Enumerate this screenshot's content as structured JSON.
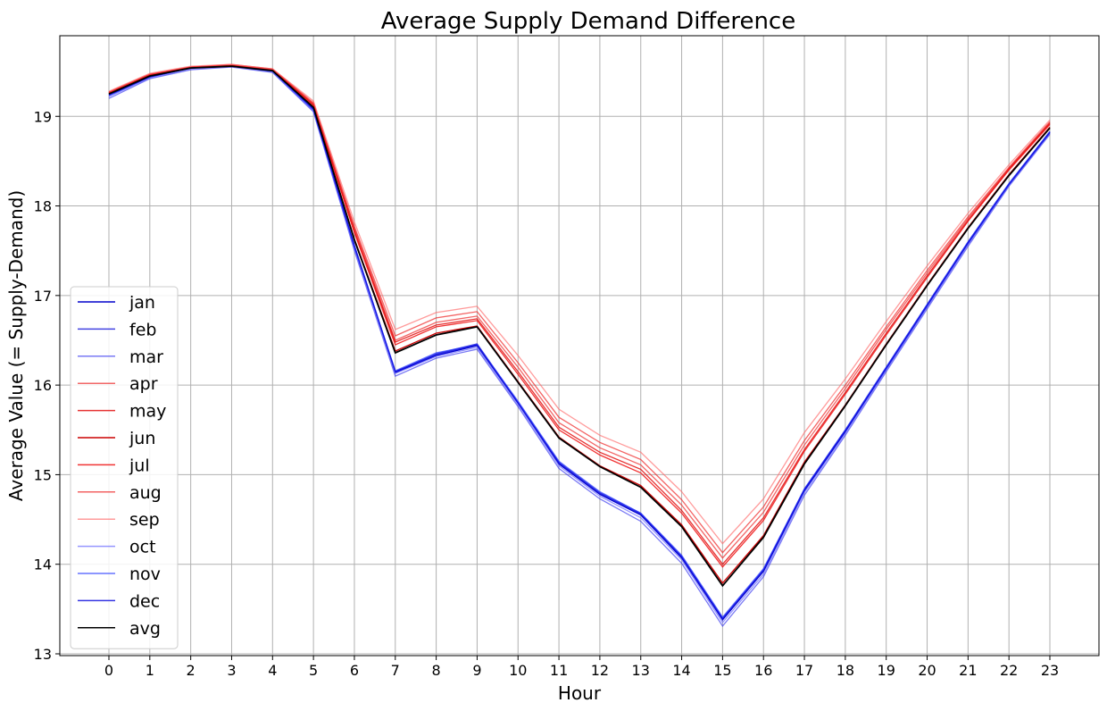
{
  "chart_data": {
    "type": "line",
    "title": "Average Supply Demand Difference",
    "xlabel": "Hour",
    "ylabel": "Average Value (= Supply-Demand)",
    "x": [
      0,
      1,
      2,
      3,
      4,
      5,
      6,
      7,
      8,
      9,
      10,
      11,
      12,
      13,
      14,
      15,
      16,
      17,
      18,
      19,
      20,
      21,
      22,
      23
    ],
    "xlim": [
      -1.2,
      24.2
    ],
    "ylim": [
      12.98,
      19.9
    ],
    "yticks": [
      13,
      14,
      15,
      16,
      17,
      18,
      19
    ],
    "grid": true,
    "legend_position": "lower-left",
    "series": [
      {
        "name": "jan",
        "color": "#0000cc",
        "opacity": 1.0,
        "values": [
          19.24,
          19.44,
          19.54,
          19.56,
          19.51,
          19.08,
          17.55,
          16.14,
          16.33,
          16.44,
          15.8,
          15.12,
          14.78,
          14.55,
          14.07,
          13.38,
          13.92,
          14.82,
          15.48,
          16.18,
          16.88,
          17.58,
          18.24,
          18.82
        ]
      },
      {
        "name": "feb",
        "color": "#2222dd",
        "opacity": 0.85,
        "values": [
          19.24,
          19.44,
          19.54,
          19.56,
          19.51,
          19.08,
          17.56,
          16.15,
          16.35,
          16.46,
          15.81,
          15.14,
          14.8,
          14.57,
          14.09,
          13.4,
          13.94,
          14.84,
          15.5,
          16.2,
          16.9,
          17.6,
          18.25,
          18.83
        ]
      },
      {
        "name": "mar",
        "color": "#3333ee",
        "opacity": 0.65,
        "values": [
          19.2,
          19.42,
          19.52,
          19.55,
          19.49,
          19.05,
          17.5,
          16.1,
          16.3,
          16.4,
          15.76,
          15.07,
          14.73,
          14.48,
          14.01,
          13.31,
          13.86,
          14.77,
          15.44,
          16.15,
          16.85,
          17.55,
          18.22,
          18.8
        ]
      },
      {
        "name": "apr",
        "color": "#ee3333",
        "opacity": 0.75,
        "values": [
          19.27,
          19.47,
          19.55,
          19.57,
          19.52,
          19.14,
          17.75,
          16.5,
          16.7,
          16.77,
          16.2,
          15.58,
          15.3,
          15.11,
          14.66,
          14.07,
          14.58,
          15.33,
          15.96,
          16.62,
          17.25,
          17.86,
          18.42,
          18.93
        ]
      },
      {
        "name": "may",
        "color": "#e00000",
        "opacity": 0.8,
        "values": [
          19.26,
          19.46,
          19.55,
          19.57,
          19.52,
          19.12,
          17.72,
          16.48,
          16.67,
          16.74,
          16.15,
          15.53,
          15.25,
          15.06,
          14.6,
          14.0,
          14.52,
          15.28,
          15.92,
          16.58,
          17.22,
          17.84,
          18.41,
          18.92
        ]
      },
      {
        "name": "jun",
        "color": "#cc0000",
        "opacity": 1.0,
        "values": [
          19.25,
          19.45,
          19.55,
          19.57,
          19.51,
          19.1,
          17.63,
          16.38,
          16.58,
          16.66,
          16.04,
          15.42,
          15.1,
          14.88,
          14.44,
          13.79,
          14.32,
          15.14,
          15.78,
          16.46,
          17.12,
          17.76,
          18.35,
          18.88
        ]
      },
      {
        "name": "jul",
        "color": "#ee1111",
        "opacity": 0.85,
        "values": [
          19.26,
          19.46,
          19.55,
          19.57,
          19.52,
          19.13,
          17.7,
          16.45,
          16.65,
          16.72,
          16.12,
          15.5,
          15.22,
          15.02,
          14.57,
          13.97,
          14.49,
          15.26,
          15.9,
          16.56,
          17.2,
          17.83,
          18.4,
          18.91
        ]
      },
      {
        "name": "aug",
        "color": "#ee2222",
        "opacity": 0.7,
        "values": [
          19.27,
          19.47,
          19.55,
          19.58,
          19.53,
          19.15,
          17.77,
          16.55,
          16.75,
          16.82,
          16.25,
          15.64,
          15.36,
          15.17,
          14.72,
          14.13,
          14.64,
          15.38,
          16.0,
          16.65,
          17.28,
          17.88,
          18.43,
          18.94
        ]
      },
      {
        "name": "sep",
        "color": "#ff6666",
        "opacity": 0.65,
        "values": [
          19.28,
          19.48,
          19.56,
          19.58,
          19.53,
          19.17,
          17.82,
          16.62,
          16.81,
          16.88,
          16.33,
          15.73,
          15.44,
          15.25,
          14.81,
          14.23,
          14.73,
          15.47,
          16.07,
          16.71,
          17.33,
          17.92,
          18.46,
          18.96
        ]
      },
      {
        "name": "oct",
        "color": "#6666ff",
        "opacity": 0.7,
        "values": [
          19.22,
          19.43,
          19.53,
          19.56,
          19.5,
          19.06,
          17.52,
          16.13,
          16.32,
          16.42,
          15.78,
          15.1,
          14.76,
          14.52,
          14.05,
          13.35,
          13.89,
          14.8,
          15.46,
          16.17,
          16.87,
          17.57,
          18.23,
          18.81
        ]
      },
      {
        "name": "nov",
        "color": "#3344ff",
        "opacity": 0.75,
        "values": [
          19.23,
          19.44,
          19.54,
          19.56,
          19.5,
          19.07,
          17.54,
          16.16,
          16.36,
          16.45,
          15.82,
          15.15,
          14.81,
          14.57,
          14.1,
          13.41,
          13.95,
          14.84,
          15.5,
          16.2,
          16.9,
          17.6,
          18.25,
          18.83
        ]
      },
      {
        "name": "dec",
        "color": "#1111dd",
        "opacity": 0.85,
        "values": [
          19.24,
          19.44,
          19.54,
          19.56,
          19.51,
          19.08,
          17.55,
          16.15,
          16.34,
          16.45,
          15.8,
          15.13,
          14.79,
          14.56,
          14.08,
          13.39,
          13.93,
          14.83,
          15.49,
          16.19,
          16.89,
          17.59,
          18.24,
          18.82
        ]
      },
      {
        "name": "avg",
        "color": "#000000",
        "opacity": 1.0,
        "values": [
          19.25,
          19.45,
          19.54,
          19.56,
          19.51,
          19.1,
          17.62,
          16.36,
          16.56,
          16.65,
          16.03,
          15.41,
          15.09,
          14.86,
          14.42,
          13.76,
          14.3,
          15.12,
          15.77,
          16.45,
          17.11,
          17.75,
          18.34,
          18.87
        ]
      }
    ]
  }
}
